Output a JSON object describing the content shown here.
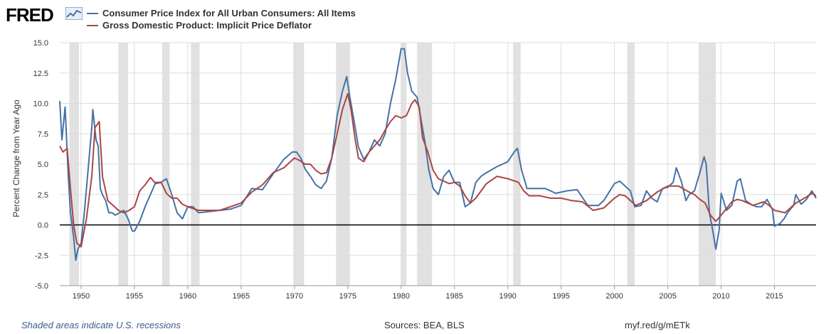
{
  "header": {
    "logo_text": "FRED",
    "logo_icon": "line-chart-icon"
  },
  "colors": {
    "cpi": "#4572a7",
    "gdp": "#aa4643",
    "recession": "#e1e1e1",
    "grid": "#dddddd",
    "zero_line": "#000000"
  },
  "footer": {
    "note": "Shaded areas indicate U.S. recessions",
    "sources": "Sources: BEA, BLS",
    "link": "myf.red/g/mETk"
  },
  "chart_data": {
    "type": "line",
    "title": "",
    "xlabel": "",
    "ylabel": "Percent Change from Year Ago",
    "xlim": [
      1948,
      2018.9
    ],
    "ylim": [
      -5,
      15
    ],
    "grid": true,
    "legend_position": "top-left",
    "x_ticks": [
      "1950",
      "1955",
      "1960",
      "1965",
      "1970",
      "1975",
      "1980",
      "1985",
      "1990",
      "1995",
      "2000",
      "2005",
      "2010",
      "2015"
    ],
    "y_ticks": [
      "15.0",
      "12.5",
      "10.0",
      "7.5",
      "5.0",
      "2.5",
      "0.0",
      "-2.5",
      "-5.0"
    ],
    "recessions": [
      [
        1948.9,
        1949.8
      ],
      [
        1953.5,
        1954.4
      ],
      [
        1957.6,
        1958.3
      ],
      [
        1960.3,
        1961.1
      ],
      [
        1969.9,
        1970.9
      ],
      [
        1973.9,
        1975.2
      ],
      [
        1980.0,
        1980.5
      ],
      [
        1981.5,
        1982.9
      ],
      [
        1990.5,
        1991.2
      ],
      [
        2001.2,
        2001.9
      ],
      [
        2007.9,
        2009.5
      ]
    ],
    "series": [
      {
        "name": "Consumer Price Index for All Urban Consumers: All Items",
        "x": [
          1948.0,
          1948.2,
          1948.5,
          1948.8,
          1949.0,
          1949.3,
          1949.5,
          1949.7,
          1950.0,
          1950.3,
          1950.6,
          1951.0,
          1951.1,
          1951.4,
          1951.6,
          1951.8,
          1952.0,
          1952.3,
          1952.6,
          1952.9,
          1953.2,
          1953.6,
          1954.0,
          1954.4,
          1954.8,
          1955.0,
          1955.5,
          1956.0,
          1956.5,
          1957.0,
          1957.5,
          1958.0,
          1958.5,
          1959.0,
          1959.5,
          1960.0,
          1960.5,
          1961.0,
          1962.0,
          1963.0,
          1964.0,
          1965.0,
          1966.0,
          1967.0,
          1968.0,
          1969.0,
          1969.8,
          1970.2,
          1970.6,
          1971.0,
          1971.5,
          1972.0,
          1972.5,
          1973.0,
          1973.5,
          1974.0,
          1974.5,
          1974.9,
          1975.2,
          1975.6,
          1976.0,
          1976.5,
          1977.0,
          1977.5,
          1978.0,
          1978.5,
          1979.0,
          1979.5,
          1980.0,
          1980.3,
          1980.6,
          1981.0,
          1981.5,
          1981.8,
          1982.2,
          1982.6,
          1983.0,
          1983.5,
          1984.0,
          1984.5,
          1985.0,
          1985.5,
          1986.0,
          1986.5,
          1987.0,
          1987.5,
          1988.0,
          1989.0,
          1990.0,
          1990.6,
          1990.9,
          1991.3,
          1991.8,
          1992.5,
          1993.5,
          1994.5,
          1995.5,
          1996.5,
          1997.5,
          1998.5,
          1999.0,
          1999.5,
          2000.0,
          2000.5,
          2001.0,
          2001.5,
          2001.9,
          2002.5,
          2003.0,
          2003.5,
          2004.0,
          2004.5,
          2005.0,
          2005.5,
          2005.8,
          2006.3,
          2006.7,
          2007.0,
          2007.5,
          2008.0,
          2008.4,
          2008.6,
          2008.9,
          2009.2,
          2009.5,
          2009.8,
          2010.0,
          2010.5,
          2011.0,
          2011.5,
          2011.8,
          2012.3,
          2012.8,
          2013.3,
          2013.8,
          2014.3,
          2014.8,
          2015.0,
          2015.5,
          2015.9,
          2016.3,
          2016.8,
          2017.0,
          2017.5,
          2018.0,
          2018.5,
          2018.9
        ],
        "values": [
          10.2,
          7.0,
          9.7,
          4.0,
          1.0,
          -1.0,
          -2.9,
          -2.0,
          -1.5,
          1.0,
          4.0,
          8.0,
          9.5,
          7.0,
          6.5,
          3.0,
          2.5,
          2.0,
          1.0,
          1.0,
          0.8,
          1.0,
          1.2,
          0.5,
          -0.5,
          -0.5,
          0.3,
          1.5,
          2.5,
          3.5,
          3.5,
          3.8,
          2.5,
          1.0,
          0.5,
          1.5,
          1.5,
          1.0,
          1.1,
          1.2,
          1.3,
          1.6,
          3.0,
          2.9,
          4.2,
          5.4,
          6.0,
          6.0,
          5.5,
          4.6,
          4.0,
          3.3,
          3.0,
          3.6,
          5.5,
          9.0,
          11.0,
          12.2,
          10.5,
          8.5,
          6.4,
          5.4,
          6.0,
          7.0,
          6.5,
          7.5,
          10.0,
          12.0,
          14.5,
          14.5,
          12.5,
          11.0,
          10.5,
          9.0,
          7.0,
          4.5,
          3.0,
          2.5,
          4.0,
          4.5,
          3.5,
          3.5,
          1.5,
          1.8,
          3.5,
          4.0,
          4.3,
          4.8,
          5.2,
          6.0,
          6.3,
          4.5,
          3.0,
          3.0,
          3.0,
          2.6,
          2.8,
          2.9,
          1.6,
          1.6,
          2.0,
          2.7,
          3.4,
          3.6,
          3.2,
          2.8,
          1.5,
          1.6,
          2.8,
          2.2,
          1.9,
          3.0,
          3.1,
          3.5,
          4.7,
          3.5,
          2.0,
          2.5,
          2.8,
          4.3,
          5.6,
          5.0,
          1.0,
          -0.4,
          -2.0,
          -0.5,
          2.6,
          1.2,
          1.6,
          3.6,
          3.8,
          2.0,
          1.7,
          1.5,
          1.5,
          2.1,
          1.3,
          -0.1,
          0.1,
          0.5,
          1.1,
          1.6,
          2.5,
          1.7,
          2.1,
          2.8,
          2.2
        ]
      },
      {
        "name": "Gross Domestic Product: Implicit Price Deflator",
        "x": [
          1948.0,
          1948.3,
          1948.7,
          1949.0,
          1949.3,
          1949.6,
          1950.0,
          1950.5,
          1951.0,
          1951.3,
          1951.7,
          1952.0,
          1952.5,
          1953.0,
          1953.5,
          1954.0,
          1954.5,
          1955.0,
          1955.5,
          1956.0,
          1956.5,
          1957.0,
          1957.5,
          1958.0,
          1958.5,
          1959.0,
          1959.5,
          1960.0,
          1961.0,
          1962.0,
          1963.0,
          1964.0,
          1965.0,
          1966.0,
          1967.0,
          1968.0,
          1969.0,
          1970.0,
          1970.5,
          1971.0,
          1971.5,
          1972.0,
          1972.5,
          1973.0,
          1973.5,
          1974.0,
          1974.5,
          1975.0,
          1975.3,
          1975.7,
          1976.0,
          1976.5,
          1977.0,
          1977.5,
          1978.0,
          1978.5,
          1979.0,
          1979.5,
          1980.0,
          1980.5,
          1981.0,
          1981.3,
          1981.7,
          1982.0,
          1982.5,
          1983.0,
          1983.5,
          1984.0,
          1984.5,
          1985.0,
          1985.5,
          1986.0,
          1986.5,
          1987.0,
          1987.5,
          1988.0,
          1989.0,
          1990.0,
          1991.0,
          1991.5,
          1992.0,
          1993.0,
          1994.0,
          1995.0,
          1996.0,
          1997.0,
          1998.0,
          1999.0,
          2000.0,
          2000.5,
          2001.0,
          2002.0,
          2003.0,
          2004.0,
          2005.0,
          2006.0,
          2007.0,
          2007.5,
          2008.0,
          2008.5,
          2009.0,
          2009.5,
          2010.0,
          2011.0,
          2011.5,
          2012.0,
          2013.0,
          2014.0,
          2014.5,
          2015.0,
          2016.0,
          2017.0,
          2018.0,
          2018.5,
          2018.9
        ],
        "values": [
          6.5,
          6.0,
          6.3,
          3.0,
          0.0,
          -1.5,
          -1.8,
          0.5,
          4.0,
          8.0,
          8.5,
          4.0,
          2.0,
          1.6,
          1.2,
          1.0,
          1.2,
          1.5,
          2.8,
          3.3,
          3.9,
          3.4,
          3.5,
          2.6,
          2.2,
          2.2,
          1.7,
          1.5,
          1.2,
          1.2,
          1.2,
          1.5,
          1.8,
          2.7,
          3.3,
          4.3,
          4.7,
          5.5,
          5.3,
          5.0,
          5.0,
          4.5,
          4.2,
          4.3,
          5.5,
          7.5,
          9.5,
          10.8,
          9.5,
          7.0,
          5.5,
          5.2,
          6.0,
          6.5,
          7.0,
          7.8,
          8.5,
          9.0,
          8.8,
          9.0,
          10.0,
          10.3,
          9.7,
          7.2,
          6.0,
          4.5,
          3.8,
          3.6,
          3.4,
          3.5,
          3.2,
          2.4,
          1.8,
          2.2,
          2.8,
          3.4,
          4.0,
          3.8,
          3.5,
          2.8,
          2.4,
          2.4,
          2.2,
          2.2,
          2.0,
          1.9,
          1.2,
          1.4,
          2.2,
          2.5,
          2.4,
          1.6,
          2.0,
          2.7,
          3.2,
          3.2,
          2.7,
          2.5,
          2.1,
          1.8,
          0.8,
          0.3,
          0.8,
          1.9,
          2.1,
          2.0,
          1.6,
          1.9,
          1.6,
          1.2,
          1.0,
          1.8,
          2.3,
          2.6,
          2.4
        ]
      }
    ]
  }
}
